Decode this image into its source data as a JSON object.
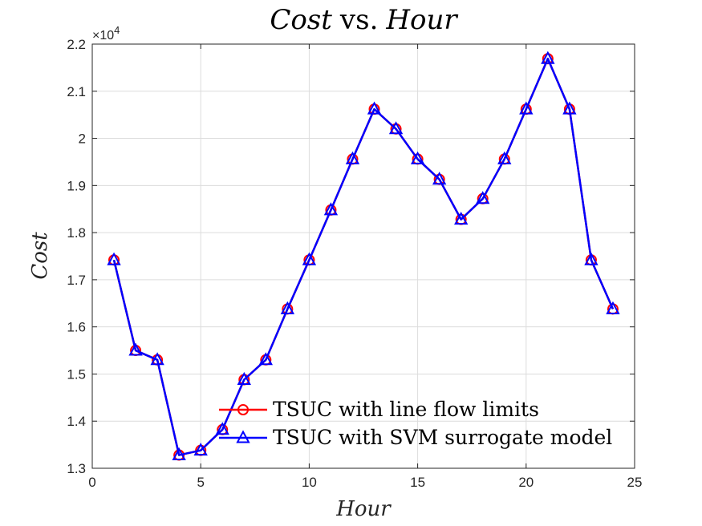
{
  "chart_data": {
    "type": "line",
    "title_parts": [
      "Cost",
      "vs.",
      "Hour"
    ],
    "xlabel": "Hour",
    "ylabel": "Cost",
    "xlim": [
      0,
      25
    ],
    "ylim": [
      13000,
      22000
    ],
    "xticks": [
      0,
      5,
      10,
      15,
      20,
      25
    ],
    "xtick_labels": [
      "0",
      "5",
      "10",
      "15",
      "20",
      "25"
    ],
    "yticks": [
      13000,
      14000,
      15000,
      16000,
      17000,
      18000,
      19000,
      20000,
      21000,
      22000
    ],
    "ytick_labels": [
      "1.3",
      "1.4",
      "1.5",
      "1.6",
      "1.7",
      "1.8",
      "1.9",
      "2",
      "2.1",
      "2.2"
    ],
    "y_exponent_label": "×10",
    "y_exponent_power": "4",
    "grid": true,
    "legend_position": "bottom-center",
    "x": [
      1,
      2,
      3,
      4,
      5,
      6,
      7,
      8,
      9,
      10,
      11,
      12,
      13,
      14,
      15,
      16,
      17,
      18,
      19,
      20,
      21,
      22,
      23,
      24
    ],
    "series": [
      {
        "name": "TSUC with line flow limits",
        "color": "#ff0000",
        "marker": "circle",
        "values": [
          17420,
          15500,
          15300,
          13280,
          13380,
          13820,
          14880,
          15300,
          16380,
          17420,
          18480,
          19560,
          20620,
          20200,
          19560,
          19130,
          18280,
          18720,
          19560,
          20620,
          21690,
          20620,
          17420,
          16380
        ]
      },
      {
        "name": "TSUC with SVM surrogate model",
        "color": "#0000ff",
        "marker": "triangle",
        "values": [
          17420,
          15500,
          15300,
          13280,
          13380,
          13820,
          14880,
          15300,
          16380,
          17420,
          18480,
          19560,
          20620,
          20200,
          19560,
          19130,
          18280,
          18720,
          19560,
          20620,
          21690,
          20620,
          17420,
          16380
        ]
      }
    ]
  }
}
